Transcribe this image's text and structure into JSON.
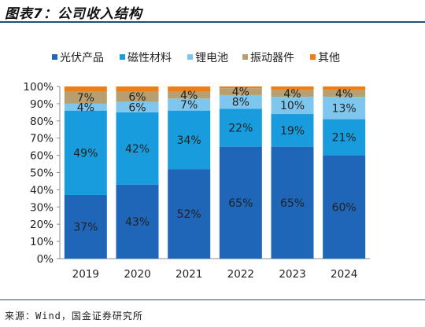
{
  "title": "图表7：公司收入结构",
  "source": "来源：Wind，国金证券研究所",
  "chart_data": {
    "type": "bar",
    "stacked": true,
    "percent": true,
    "categories": [
      "2019",
      "2020",
      "2021",
      "2022",
      "2023",
      "2024"
    ],
    "series": [
      {
        "name": "光伏产品",
        "color": "#1f65b8",
        "values": [
          37,
          43,
          52,
          65,
          65,
          60
        ]
      },
      {
        "name": "磁性材料",
        "color": "#189cdd",
        "values": [
          49,
          42,
          34,
          22,
          19,
          21
        ]
      },
      {
        "name": "锂电池",
        "color": "#7fc6ee",
        "values": [
          4,
          6,
          7,
          8,
          10,
          13
        ]
      },
      {
        "name": "振动器件",
        "color": "#b79f72",
        "values": [
          7,
          6,
          4,
          4,
          4,
          4
        ]
      },
      {
        "name": "其他",
        "color": "#ee7f16",
        "values": [
          3,
          3,
          3,
          1,
          2,
          2
        ]
      }
    ],
    "data_labels": [
      [
        "37%",
        "49%",
        "4%",
        "7%",
        null
      ],
      [
        "43%",
        "42%",
        "6%",
        "6%",
        null
      ],
      [
        "52%",
        "34%",
        "7%",
        "4%",
        null
      ],
      [
        "65%",
        "22%",
        "8%",
        "4%",
        null
      ],
      [
        "65%",
        "19%",
        "10%",
        "4%",
        null
      ],
      [
        "60%",
        "21%",
        "13%",
        "4%",
        null
      ]
    ],
    "y_ticks": [
      "0%",
      "10%",
      "20%",
      "30%",
      "40%",
      "50%",
      "60%",
      "70%",
      "80%",
      "90%",
      "100%"
    ],
    "ylim": [
      0,
      100
    ],
    "legend_position": "top",
    "grid": false
  }
}
